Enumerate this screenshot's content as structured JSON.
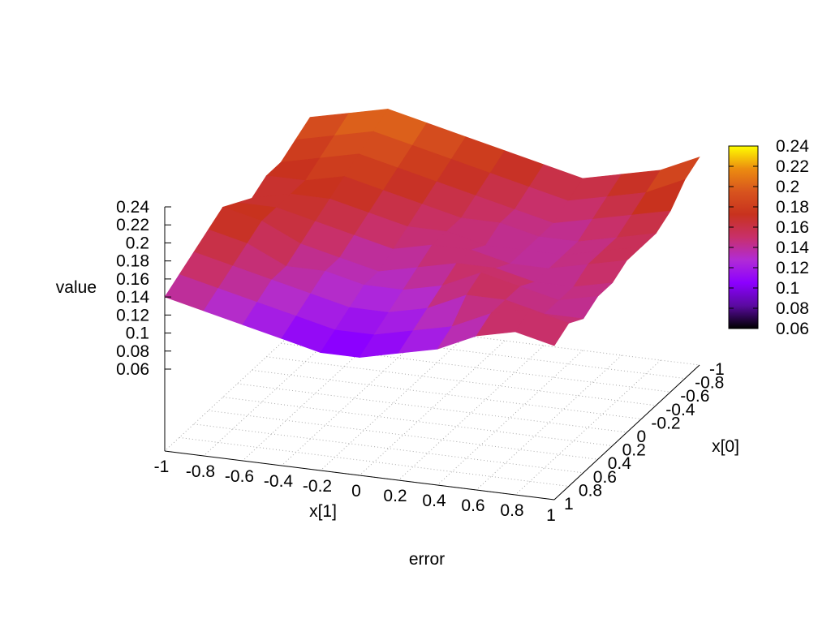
{
  "chart_data": {
    "type": "surface",
    "title": "",
    "xlabel": "x[1]",
    "ylabel": "x[0]",
    "zlabel": "value",
    "bottom_label": "error",
    "xlim": [
      -1,
      1
    ],
    "ylim": [
      -1,
      1
    ],
    "zlim": [
      0.06,
      0.24
    ],
    "x_ticks": [
      "-1",
      "-0.8",
      "-0.6",
      "-0.4",
      "-0.2",
      "0",
      "0.2",
      "0.4",
      "0.6",
      "0.8",
      "1"
    ],
    "y_ticks": [
      "-1",
      "-0.8",
      "-0.6",
      "-0.4",
      "-0.2",
      "0",
      "0.2",
      "0.4",
      "0.6",
      "0.8",
      "1"
    ],
    "z_ticks": [
      "0.24",
      "0.22",
      "0.2",
      "0.18",
      "0.16",
      "0.14",
      "0.12",
      "0.1",
      "0.08",
      "0.06"
    ],
    "colorbar": {
      "range": [
        0.06,
        0.24
      ],
      "ticks": [
        "0.24",
        "0.22",
        "0.2",
        "0.18",
        "0.16",
        "0.14",
        "0.12",
        "0.1",
        "0.08",
        "0.06"
      ],
      "palette": [
        "#000000",
        "#5a0aa0",
        "#8c00ff",
        "#b12bd6",
        "#c8306a",
        "#c8321e",
        "#d8541e",
        "#ec8c10",
        "#ffff00"
      ]
    },
    "grid": true,
    "x": [
      -1,
      -0.8,
      -0.6,
      -0.4,
      -0.2,
      0,
      0.2,
      0.4,
      0.6,
      0.8,
      1
    ],
    "y": [
      -1,
      -0.8,
      -0.6,
      -0.4,
      -0.2,
      0,
      0.2,
      0.4,
      0.6,
      0.8,
      1
    ],
    "z_rows_by_x0": [
      [
        0.19,
        0.2,
        0.21,
        0.2,
        0.19,
        0.18,
        0.17,
        0.16,
        0.17,
        0.18,
        0.2
      ],
      [
        0.18,
        0.19,
        0.2,
        0.19,
        0.18,
        0.17,
        0.16,
        0.15,
        0.16,
        0.17,
        0.19
      ],
      [
        0.17,
        0.18,
        0.19,
        0.18,
        0.17,
        0.16,
        0.15,
        0.14,
        0.15,
        0.16,
        0.17
      ],
      [
        0.17,
        0.17,
        0.18,
        0.17,
        0.16,
        0.15,
        0.15,
        0.14,
        0.14,
        0.15,
        0.16
      ],
      [
        0.16,
        0.17,
        0.17,
        0.16,
        0.15,
        0.15,
        0.14,
        0.14,
        0.14,
        0.15,
        0.16
      ],
      [
        0.17,
        0.17,
        0.16,
        0.15,
        0.14,
        0.15,
        0.15,
        0.14,
        0.14,
        0.15,
        0.16
      ],
      [
        0.18,
        0.17,
        0.15,
        0.14,
        0.13,
        0.14,
        0.15,
        0.15,
        0.14,
        0.14,
        0.15
      ],
      [
        0.17,
        0.16,
        0.14,
        0.14,
        0.13,
        0.13,
        0.14,
        0.16,
        0.15,
        0.14,
        0.15
      ],
      [
        0.16,
        0.15,
        0.14,
        0.13,
        0.12,
        0.12,
        0.13,
        0.15,
        0.15,
        0.14,
        0.14
      ],
      [
        0.15,
        0.14,
        0.13,
        0.12,
        0.11,
        0.11,
        0.12,
        0.13,
        0.15,
        0.16,
        0.15
      ],
      [
        0.14,
        0.13,
        0.12,
        0.11,
        0.1,
        0.1,
        0.11,
        0.12,
        0.14,
        0.15,
        0.14
      ]
    ]
  }
}
